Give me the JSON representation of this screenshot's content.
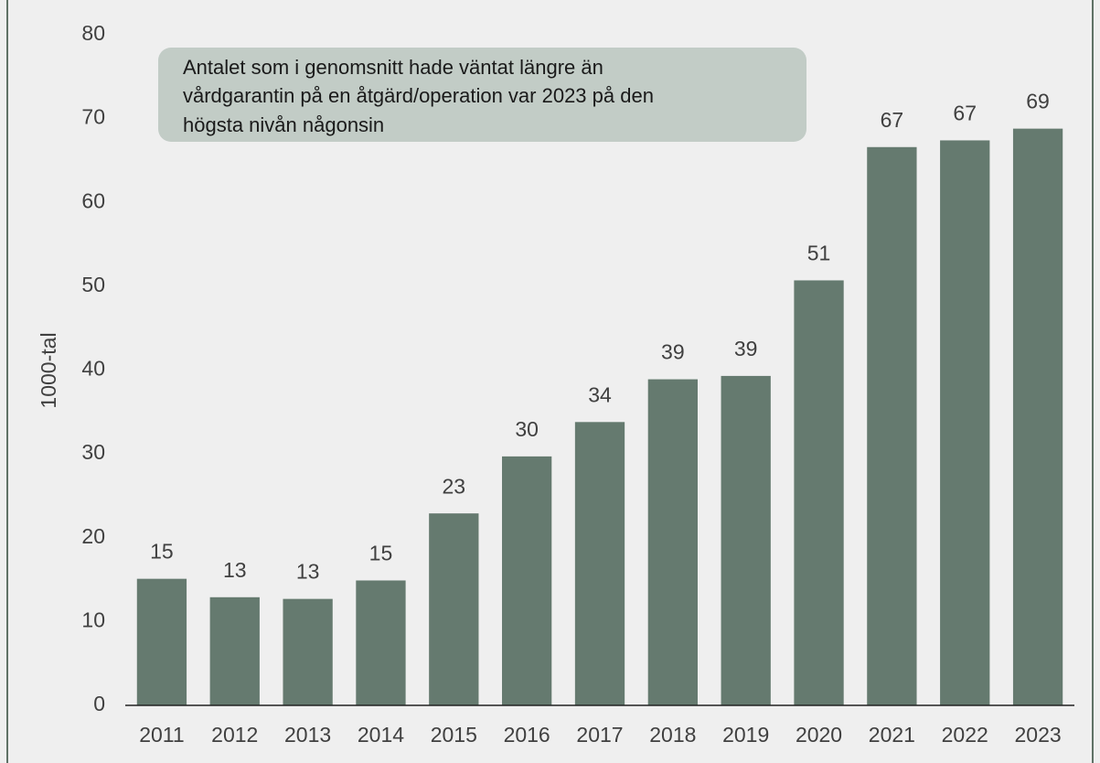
{
  "chart_data": {
    "type": "bar",
    "y_label": "1000-tal",
    "annotation": [
      "Antalet som i genomsnitt hade väntat längre än",
      "vårdgarantin på en åtgärd/operation var 2023 på den",
      "högsta nivån någonsin"
    ],
    "categories": [
      "2011",
      "2012",
      "2013",
      "2014",
      "2015",
      "2016",
      "2017",
      "2018",
      "2019",
      "2020",
      "2021",
      "2022",
      "2023"
    ],
    "values": [
      15.1,
      12.9,
      12.7,
      14.9,
      22.9,
      29.7,
      33.8,
      38.9,
      39.3,
      50.7,
      66.6,
      67.4,
      68.8
    ],
    "value_labels": [
      "15",
      "13",
      "13",
      "15",
      "23",
      "30",
      "34",
      "39",
      "39",
      "51",
      "67",
      "67",
      "69"
    ],
    "color": "#657a6f",
    "ylim": [
      0,
      80
    ],
    "yticks": [
      0,
      10,
      20,
      30,
      40,
      50,
      60,
      70,
      80
    ],
    "grid": false
  }
}
